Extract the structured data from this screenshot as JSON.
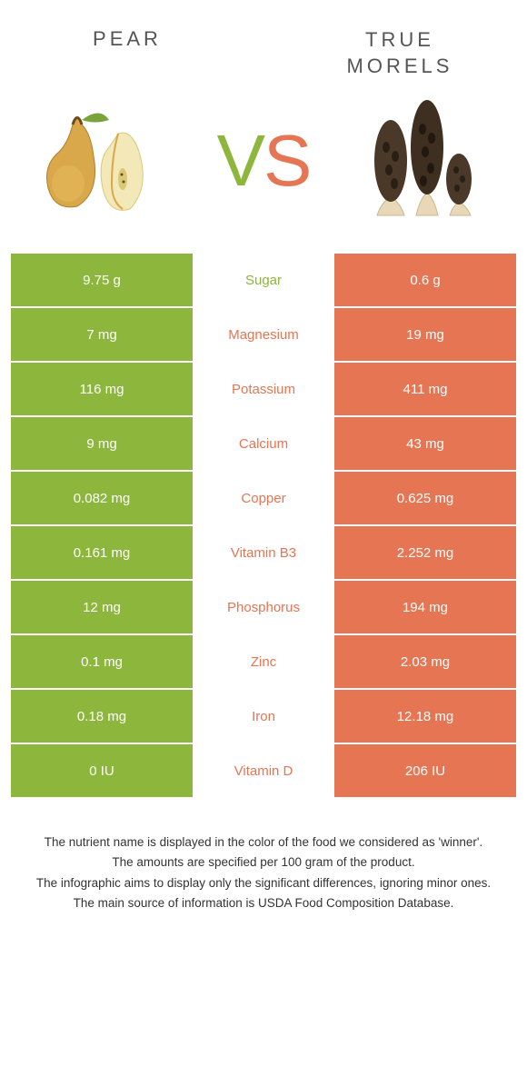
{
  "colors": {
    "pear": "#8cb63c",
    "morel": "#e57553",
    "text": "#555555",
    "white": "#ffffff"
  },
  "header": {
    "left_title": "Pear",
    "right_title_line1": "True",
    "right_title_line2": "morels"
  },
  "vs": {
    "v": "V",
    "s": "S"
  },
  "nutrients": [
    {
      "name": "Sugar",
      "left": "9.75 g",
      "right": "0.6 g",
      "winner": "pear"
    },
    {
      "name": "Magnesium",
      "left": "7 mg",
      "right": "19 mg",
      "winner": "morel"
    },
    {
      "name": "Potassium",
      "left": "116 mg",
      "right": "411 mg",
      "winner": "morel"
    },
    {
      "name": "Calcium",
      "left": "9 mg",
      "right": "43 mg",
      "winner": "morel"
    },
    {
      "name": "Copper",
      "left": "0.082 mg",
      "right": "0.625 mg",
      "winner": "morel"
    },
    {
      "name": "Vitamin B3",
      "left": "0.161 mg",
      "right": "2.252 mg",
      "winner": "morel"
    },
    {
      "name": "Phosphorus",
      "left": "12 mg",
      "right": "194 mg",
      "winner": "morel"
    },
    {
      "name": "Zinc",
      "left": "0.1 mg",
      "right": "2.03 mg",
      "winner": "morel"
    },
    {
      "name": "Iron",
      "left": "0.18 mg",
      "right": "12.18 mg",
      "winner": "morel"
    },
    {
      "name": "Vitamin D",
      "left": "0 IU",
      "right": "206 IU",
      "winner": "morel"
    }
  ],
  "footer": {
    "line1": "The nutrient name is displayed in the color of the food we considered as 'winner'.",
    "line2": "The amounts are specified per 100 gram of the product.",
    "line3": "The infographic aims to display only the significant differences, ignoring minor ones.",
    "line4": "The main source of information is USDA Food Composition Database."
  }
}
